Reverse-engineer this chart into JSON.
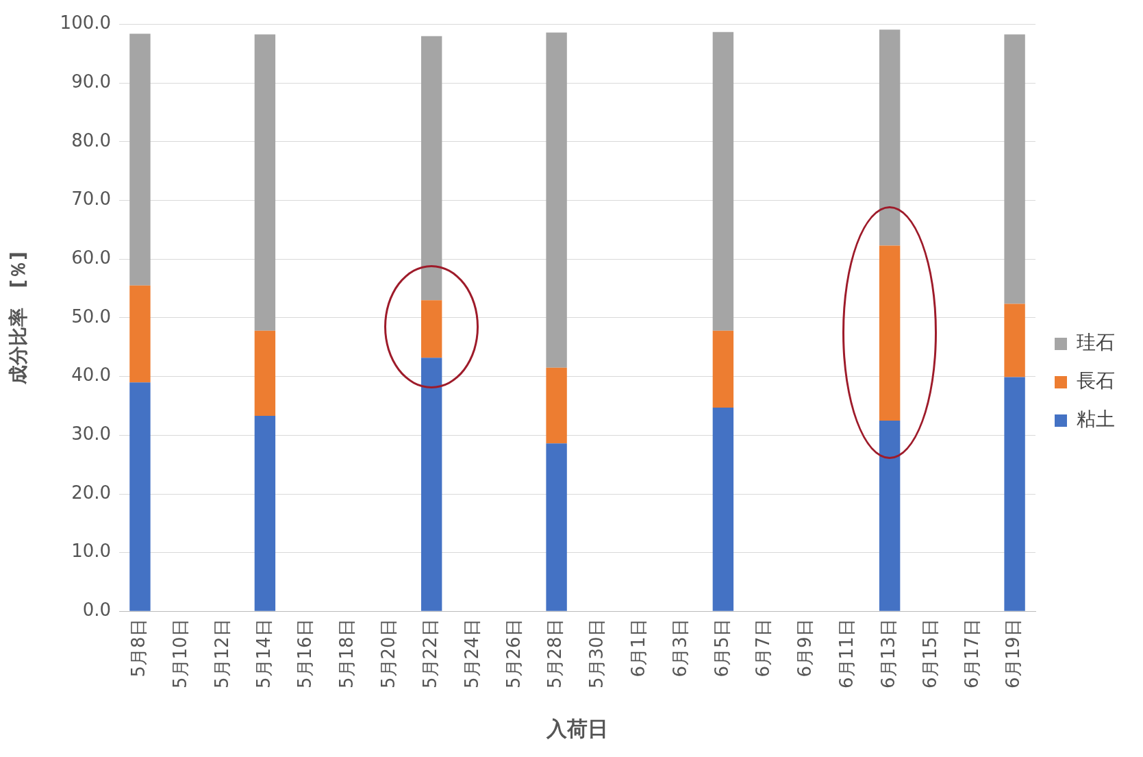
{
  "chart_data": {
    "type": "bar",
    "stacked": true,
    "xlabel": "入荷日",
    "ylabel": "成分比率　[％]",
    "categories": [
      "5月8日",
      "5月10日",
      "5月12日",
      "5月14日",
      "5月16日",
      "5月18日",
      "5月20日",
      "5月22日",
      "5月24日",
      "5月26日",
      "5月28日",
      "5月30日",
      "6月1日",
      "6月3日",
      "6月5日",
      "6月7日",
      "6月9日",
      "6月11日",
      "6月13日",
      "6月15日",
      "6月17日",
      "6月19日"
    ],
    "series": [
      {
        "name": "粘土",
        "color": "#4472c4",
        "values": [
          39.0,
          null,
          null,
          33.3,
          null,
          null,
          null,
          43.2,
          null,
          null,
          28.6,
          null,
          null,
          null,
          34.7,
          null,
          null,
          null,
          32.5,
          null,
          null,
          39.9
        ]
      },
      {
        "name": "長石",
        "color": "#ed7d31",
        "values": [
          16.5,
          null,
          null,
          14.5,
          null,
          null,
          null,
          9.8,
          null,
          null,
          12.9,
          null,
          null,
          null,
          13.1,
          null,
          null,
          null,
          29.8,
          null,
          null,
          12.5
        ]
      },
      {
        "name": "珪石",
        "color": "#a5a5a5",
        "values": [
          42.9,
          null,
          null,
          50.5,
          null,
          null,
          null,
          45.0,
          null,
          null,
          57.1,
          null,
          null,
          null,
          50.9,
          null,
          null,
          null,
          36.8,
          null,
          null,
          45.9
        ]
      }
    ],
    "ylim": [
      0,
      100
    ],
    "yticks": [
      {
        "value": 0,
        "label": "0.0"
      },
      {
        "value": 10,
        "label": "10.0"
      },
      {
        "value": 20,
        "label": "20.0"
      },
      {
        "value": 30,
        "label": "30.0"
      },
      {
        "value": 40,
        "label": "40.0"
      },
      {
        "value": 50,
        "label": "50.0"
      },
      {
        "value": 60,
        "label": "60.0"
      },
      {
        "value": 70,
        "label": "70.0"
      },
      {
        "value": 80,
        "label": "80.0"
      },
      {
        "value": 90,
        "label": "90.0"
      },
      {
        "value": 100,
        "label": "100.0"
      }
    ],
    "grid": "y",
    "legend": "right"
  }
}
